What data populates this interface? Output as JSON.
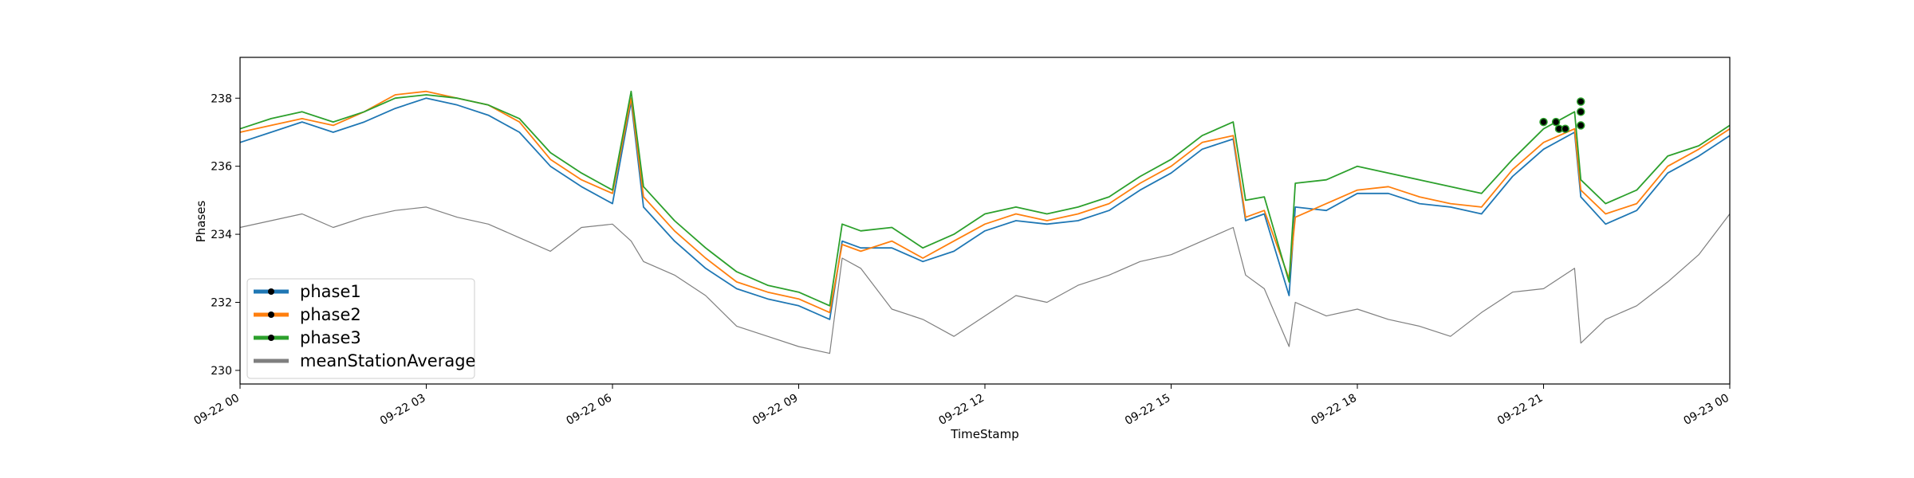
{
  "chart_data": {
    "type": "line",
    "title": "",
    "xlabel": "TimeStamp",
    "ylabel": "Phases",
    "xlim": [
      0,
      24
    ],
    "ylim": [
      229.6,
      239.2
    ],
    "x_ticks": [
      {
        "x": 0,
        "label": "09-22 00"
      },
      {
        "x": 3,
        "label": "09-22 03"
      },
      {
        "x": 6,
        "label": "09-22 06"
      },
      {
        "x": 9,
        "label": "09-22 09"
      },
      {
        "x": 12,
        "label": "09-22 12"
      },
      {
        "x": 15,
        "label": "09-22 15"
      },
      {
        "x": 18,
        "label": "09-22 18"
      },
      {
        "x": 21,
        "label": "09-22 21"
      },
      {
        "x": 24,
        "label": "09-23 00"
      }
    ],
    "y_ticks": [
      230,
      232,
      234,
      236,
      238
    ],
    "grid": false,
    "legend_position": "lower-left",
    "series": [
      {
        "name": "phase1",
        "color": "#1f77b4",
        "x": [
          0,
          0.5,
          1.0,
          1.5,
          2.0,
          2.5,
          3.0,
          3.5,
          4.0,
          4.5,
          5.0,
          5.5,
          6.0,
          6.3,
          6.5,
          7.0,
          7.5,
          8.0,
          8.5,
          9.0,
          9.5,
          9.7,
          10.0,
          10.5,
          11.0,
          11.5,
          12.0,
          12.5,
          13.0,
          13.5,
          14.0,
          14.5,
          15.0,
          15.5,
          16.0,
          16.2,
          16.5,
          16.9,
          17.0,
          17.5,
          18.0,
          18.5,
          19.0,
          19.5,
          20.0,
          20.5,
          21.0,
          21.5,
          21.6,
          22.0,
          22.5,
          23.0,
          23.5,
          24.0
        ],
        "values": [
          236.7,
          237.0,
          237.3,
          237.0,
          237.3,
          237.7,
          238.0,
          237.8,
          237.5,
          237.0,
          236.0,
          235.4,
          234.9,
          237.9,
          234.8,
          233.8,
          233.0,
          232.4,
          232.1,
          231.9,
          231.5,
          233.8,
          233.6,
          233.6,
          233.2,
          233.5,
          234.1,
          234.4,
          234.3,
          234.4,
          234.7,
          235.3,
          235.8,
          236.5,
          236.8,
          234.4,
          234.6,
          232.2,
          234.8,
          234.7,
          235.2,
          235.2,
          234.9,
          234.8,
          234.6,
          235.7,
          236.5,
          237.0,
          235.1,
          234.3,
          234.7,
          235.8,
          236.3,
          236.9
        ]
      },
      {
        "name": "phase2",
        "color": "#ff7f0e",
        "x": [
          0,
          0.5,
          1.0,
          1.5,
          2.0,
          2.5,
          3.0,
          3.5,
          4.0,
          4.5,
          5.0,
          5.5,
          6.0,
          6.3,
          6.5,
          7.0,
          7.5,
          8.0,
          8.5,
          9.0,
          9.5,
          9.7,
          10.0,
          10.5,
          11.0,
          11.5,
          12.0,
          12.5,
          13.0,
          13.5,
          14.0,
          14.5,
          15.0,
          15.5,
          16.0,
          16.2,
          16.5,
          16.9,
          17.0,
          17.5,
          18.0,
          18.5,
          19.0,
          19.5,
          20.0,
          20.5,
          21.0,
          21.5,
          21.6,
          22.0,
          22.5,
          23.0,
          23.5,
          24.0
        ],
        "values": [
          237.0,
          237.2,
          237.4,
          237.2,
          237.6,
          238.1,
          238.2,
          238.0,
          237.8,
          237.3,
          236.2,
          235.6,
          235.2,
          238.0,
          235.1,
          234.1,
          233.3,
          232.6,
          232.3,
          232.1,
          231.7,
          233.7,
          233.5,
          233.8,
          233.3,
          233.8,
          234.3,
          234.6,
          234.4,
          234.6,
          234.9,
          235.5,
          236.0,
          236.7,
          236.9,
          234.5,
          234.7,
          232.7,
          234.5,
          234.9,
          235.3,
          235.4,
          235.1,
          234.9,
          234.8,
          235.9,
          236.7,
          237.1,
          235.3,
          234.6,
          234.9,
          236.0,
          236.5,
          237.1
        ]
      },
      {
        "name": "phase3",
        "color": "#2ca02c",
        "x": [
          0,
          0.5,
          1.0,
          1.5,
          2.0,
          2.5,
          3.0,
          3.5,
          4.0,
          4.5,
          5.0,
          5.5,
          6.0,
          6.3,
          6.5,
          7.0,
          7.5,
          8.0,
          8.5,
          9.0,
          9.5,
          9.7,
          10.0,
          10.5,
          11.0,
          11.5,
          12.0,
          12.5,
          13.0,
          13.5,
          14.0,
          14.5,
          15.0,
          15.5,
          16.0,
          16.2,
          16.5,
          16.9,
          17.0,
          17.5,
          18.0,
          18.5,
          19.0,
          19.5,
          20.0,
          20.5,
          21.0,
          21.5,
          21.6,
          22.0,
          22.5,
          23.0,
          23.5,
          24.0
        ],
        "values": [
          237.1,
          237.4,
          237.6,
          237.3,
          237.6,
          238.0,
          238.1,
          238.0,
          237.8,
          237.4,
          236.4,
          235.8,
          235.3,
          238.2,
          235.4,
          234.4,
          233.6,
          232.9,
          232.5,
          232.3,
          231.9,
          234.3,
          234.1,
          234.2,
          233.6,
          234.0,
          234.6,
          234.8,
          234.6,
          234.8,
          235.1,
          235.7,
          236.2,
          236.9,
          237.3,
          235.0,
          235.1,
          232.6,
          235.5,
          235.6,
          236.0,
          235.8,
          235.6,
          235.4,
          235.2,
          236.2,
          237.1,
          237.6,
          235.6,
          234.9,
          235.3,
          236.3,
          236.6,
          237.2
        ]
      },
      {
        "name": "meanStationAverage",
        "color": "#7f7f7f",
        "x": [
          0,
          0.5,
          1.0,
          1.5,
          2.0,
          2.5,
          3.0,
          3.5,
          4.0,
          4.5,
          5.0,
          5.5,
          6.0,
          6.3,
          6.5,
          7.0,
          7.5,
          8.0,
          8.5,
          9.0,
          9.5,
          9.7,
          10.0,
          10.5,
          11.0,
          11.5,
          12.0,
          12.5,
          13.0,
          13.5,
          14.0,
          14.5,
          15.0,
          15.5,
          16.0,
          16.2,
          16.5,
          16.9,
          17.0,
          17.5,
          18.0,
          18.5,
          19.0,
          19.5,
          20.0,
          20.5,
          21.0,
          21.5,
          21.6,
          22.0,
          22.5,
          23.0,
          23.5,
          24.0
        ],
        "values": [
          234.2,
          234.4,
          234.6,
          234.2,
          234.5,
          234.7,
          234.8,
          234.5,
          234.3,
          233.9,
          233.5,
          234.2,
          234.3,
          233.8,
          233.2,
          232.8,
          232.2,
          231.3,
          231.0,
          230.7,
          230.5,
          233.3,
          233.0,
          231.8,
          231.5,
          231.0,
          231.6,
          232.2,
          232.0,
          232.5,
          232.8,
          233.2,
          233.4,
          233.8,
          234.2,
          232.8,
          232.4,
          230.7,
          232.0,
          231.6,
          231.8,
          231.5,
          231.3,
          231.0,
          231.7,
          232.3,
          232.4,
          233.0,
          230.8,
          231.5,
          231.9,
          232.6,
          233.4,
          234.6
        ]
      }
    ],
    "marker_points": [
      {
        "x": 21.0,
        "y": 237.3
      },
      {
        "x": 21.2,
        "y": 237.3
      },
      {
        "x": 21.25,
        "y": 237.1
      },
      {
        "x": 21.35,
        "y": 237.1
      },
      {
        "x": 21.6,
        "y": 237.2
      },
      {
        "x": 21.6,
        "y": 237.6
      },
      {
        "x": 21.6,
        "y": 237.9
      }
    ],
    "legend": [
      {
        "name": "phase1",
        "color": "#1f77b4",
        "marker": true
      },
      {
        "name": "phase2",
        "color": "#ff7f0e",
        "marker": true
      },
      {
        "name": "phase3",
        "color": "#2ca02c",
        "marker": true
      },
      {
        "name": "meanStationAverage",
        "color": "#7f7f7f",
        "marker": false
      }
    ]
  }
}
